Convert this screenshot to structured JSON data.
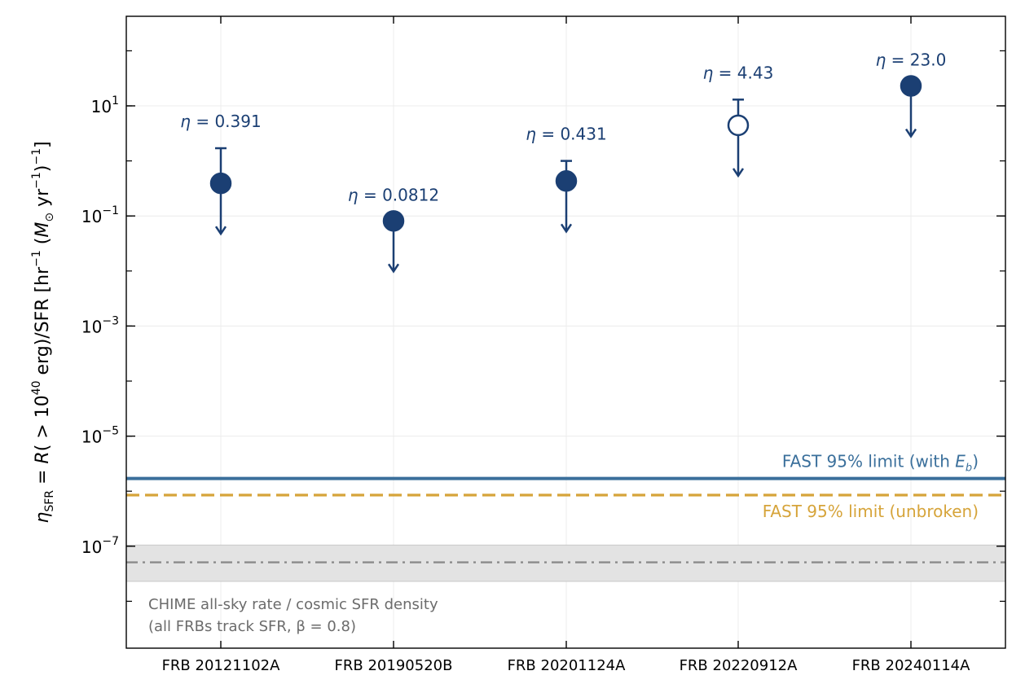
{
  "chart_data": {
    "type": "scatter",
    "title": "",
    "xlabel": "",
    "ylabel": "η_SFR = R(>10^40 erg)/SFR  [hr^-1 (M_⊙ yr^-1)^-1]",
    "y_scale": "log",
    "ylim": [
      1e-08,
      400
    ],
    "grid": true,
    "categories": [
      "FRB 20121102A",
      "FRB 20190520B",
      "FRB 20201124A",
      "FRB 20220912A",
      "FRB 20240114A"
    ],
    "points": [
      {
        "category": "FRB 20121102A",
        "value": 0.391,
        "upper_error": 1.7,
        "label": "η = 0.391",
        "marker": "filled",
        "upper_limit": true
      },
      {
        "category": "FRB 20190520B",
        "value": 0.0812,
        "upper_error": null,
        "label": "η = 0.0812",
        "marker": "filled",
        "upper_limit": true
      },
      {
        "category": "FRB 20201124A",
        "value": 0.431,
        "upper_error": 1.0,
        "label": "η = 0.431",
        "marker": "filled",
        "upper_limit": true
      },
      {
        "category": "FRB 20220912A",
        "value": 4.43,
        "upper_error": 13.0,
        "label": "η = 4.43",
        "marker": "open",
        "upper_limit": true
      },
      {
        "category": "FRB 20240114A",
        "value": 23.0,
        "upper_error": null,
        "label": "η = 23.0",
        "marker": "filled",
        "upper_limit": true
      }
    ],
    "yticks": [
      {
        "value": 10,
        "label": "10^1"
      },
      {
        "value": 0.1,
        "label": "10^-1"
      },
      {
        "value": 0.001,
        "label": "10^-3"
      },
      {
        "value": 1e-05,
        "label": "10^-5"
      },
      {
        "value": 1e-07,
        "label": "10^-7"
      }
    ],
    "reference_lines": [
      {
        "value": 1.7e-06,
        "style": "solid",
        "color": "#3a6f9b",
        "label": "FAST 95% limit (with E_b)"
      },
      {
        "value": 8.5e-07,
        "style": "dashed",
        "color": "#d6a43a",
        "label": "FAST 95% limit (unbroken)"
      },
      {
        "value": 5.1e-08,
        "style": "dashdot",
        "color": "#8a8a8a",
        "band": [
          2.3e-08,
          1.05e-07
        ],
        "band_color": "#e3e3e3",
        "label_lines": [
          "CHIME all-sky rate / cosmic SFR density",
          "(all FRBs track SFR, β = 0.8)"
        ]
      }
    ],
    "colors": {
      "marker": "#1b3f73",
      "frame": "#000000"
    }
  }
}
